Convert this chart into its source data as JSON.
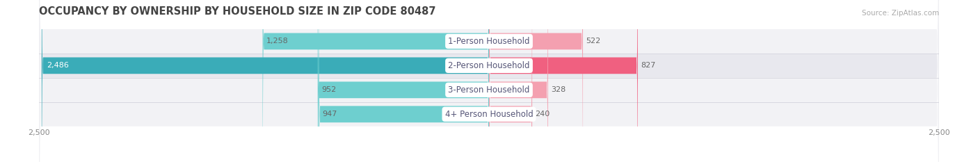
{
  "title": "OCCUPANCY BY OWNERSHIP BY HOUSEHOLD SIZE IN ZIP CODE 80487",
  "source": "Source: ZipAtlas.com",
  "categories": [
    "1-Person Household",
    "2-Person Household",
    "3-Person Household",
    "4+ Person Household"
  ],
  "owner_values": [
    1258,
    2486,
    952,
    947
  ],
  "renter_values": [
    522,
    827,
    328,
    240
  ],
  "owner_colors": [
    "#6ECFCF",
    "#3AACB8",
    "#6ECFCF",
    "#6ECFCF"
  ],
  "renter_colors": [
    "#F4A0B0",
    "#F06080",
    "#F4A0B0",
    "#F4A0B0"
  ],
  "row_colors": [
    "#F2F2F5",
    "#E8E8EE",
    "#F2F2F5",
    "#F2F2F5"
  ],
  "separator_color": "#D8D8E0",
  "max_scale": 2500,
  "label_color": "#666666",
  "title_color": "#444444",
  "source_color": "#AAAAAA",
  "axis_label_color": "#888888",
  "center_label_bg": "#FFFFFF",
  "center_label_color": "#555577",
  "value_fontsize": 8.0,
  "category_fontsize": 8.5,
  "title_fontsize": 10.5,
  "legend_fontsize": 8.5,
  "axis_tick_fontsize": 8.0
}
